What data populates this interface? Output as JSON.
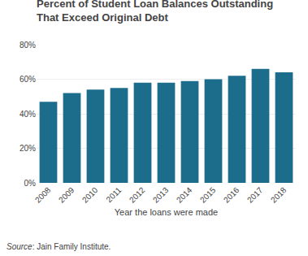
{
  "chart_data": {
    "type": "bar",
    "title": "Percent of Student Loan Balances Outstanding\nThat Exceed Original Debt",
    "xlabel": "Year the loans were made",
    "categories": [
      "2008",
      "2009",
      "2010",
      "2011",
      "2012",
      "2013",
      "2014",
      "2015",
      "2016",
      "2017",
      "2018"
    ],
    "values": [
      47,
      52,
      54,
      55,
      58,
      58,
      59,
      60,
      62,
      66,
      64
    ],
    "color": "#1c6d8c",
    "ylim": [
      0,
      80
    ],
    "yticks": [
      {
        "value": 0,
        "label": "0%"
      },
      {
        "value": 20,
        "label": "20%"
      },
      {
        "value": 40,
        "label": "40%"
      },
      {
        "value": 60,
        "label": "60%"
      },
      {
        "value": 80,
        "label": "80%"
      }
    ],
    "grid": true,
    "annotations": [
      "Source",
      ": Jain Family Institute."
    ]
  }
}
